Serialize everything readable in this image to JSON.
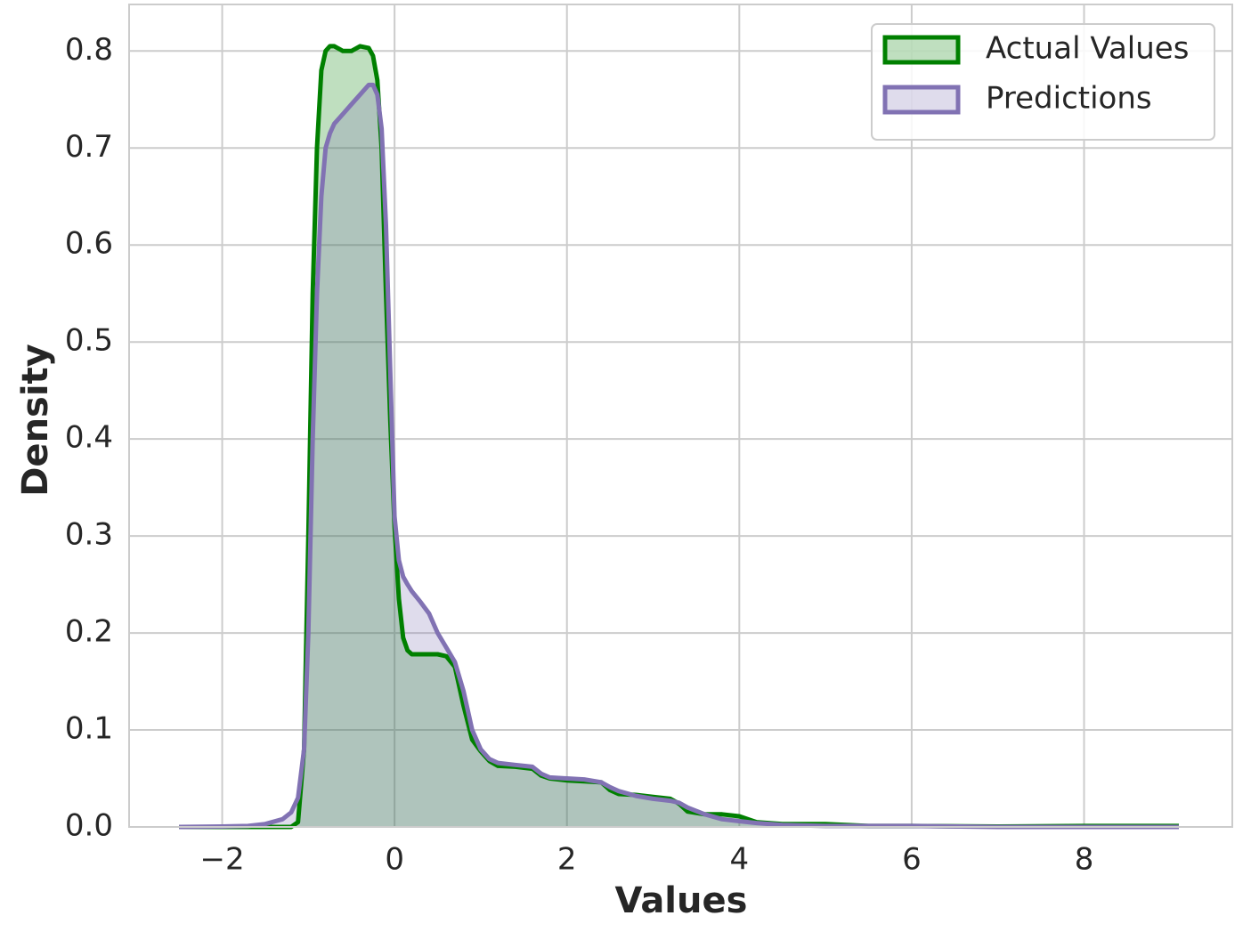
{
  "chart_data": {
    "type": "kde",
    "xlabel": "Values",
    "ylabel": "Density",
    "x": [
      -2.5,
      -2,
      -1.7,
      -1.5,
      -1.3,
      -1.2,
      -1.12,
      -1.05,
      -1.0,
      -0.95,
      -0.9,
      -0.85,
      -0.8,
      -0.75,
      -0.7,
      -0.6,
      -0.5,
      -0.4,
      -0.3,
      -0.25,
      -0.2,
      -0.15,
      -0.1,
      -0.05,
      0,
      0.05,
      0.1,
      0.15,
      0.2,
      0.3,
      0.4,
      0.5,
      0.6,
      0.7,
      0.8,
      0.9,
      1.0,
      1.1,
      1.2,
      1.4,
      1.6,
      1.7,
      1.8,
      2.0,
      2.2,
      2.4,
      2.5,
      2.6,
      2.8,
      3.0,
      3.2,
      3.3,
      3.4,
      3.6,
      3.8,
      4.0,
      4.2,
      4.5,
      5.0,
      5.5,
      6,
      7,
      8,
      9.1
    ],
    "series": [
      {
        "name": "Actual Values",
        "color": "#008000",
        "fill_opacity": 0.25,
        "values": [
          0,
          0,
          0,
          0,
          0,
          0,
          0.005,
          0.08,
          0.3,
          0.55,
          0.7,
          0.78,
          0.8,
          0.805,
          0.805,
          0.8,
          0.8,
          0.805,
          0.803,
          0.795,
          0.77,
          0.7,
          0.55,
          0.42,
          0.31,
          0.235,
          0.195,
          0.182,
          0.178,
          0.178,
          0.178,
          0.178,
          0.176,
          0.165,
          0.125,
          0.09,
          0.078,
          0.068,
          0.063,
          0.062,
          0.06,
          0.053,
          0.05,
          0.048,
          0.047,
          0.046,
          0.038,
          0.034,
          0.033,
          0.031,
          0.029,
          0.024,
          0.016,
          0.013,
          0.013,
          0.011,
          0.005,
          0.003,
          0.003,
          0.001,
          0.001,
          0.0005,
          0.001,
          0.001
        ]
      },
      {
        "name": "Predictions",
        "color": "#8172b3",
        "fill_opacity": 0.25,
        "values": [
          0,
          0.0005,
          0.001,
          0.003,
          0.008,
          0.015,
          0.03,
          0.08,
          0.2,
          0.4,
          0.55,
          0.65,
          0.7,
          0.715,
          0.725,
          0.735,
          0.745,
          0.755,
          0.765,
          0.765,
          0.755,
          0.72,
          0.62,
          0.47,
          0.32,
          0.275,
          0.258,
          0.25,
          0.243,
          0.232,
          0.22,
          0.2,
          0.185,
          0.17,
          0.14,
          0.1,
          0.08,
          0.07,
          0.066,
          0.064,
          0.062,
          0.055,
          0.051,
          0.05,
          0.049,
          0.046,
          0.041,
          0.037,
          0.032,
          0.029,
          0.027,
          0.025,
          0.02,
          0.013,
          0.008,
          0.006,
          0.004,
          0.002,
          0.001,
          0.001,
          0.001,
          0,
          0,
          0
        ]
      }
    ],
    "xlim": [
      -3.08,
      9.72
    ],
    "ylim": [
      0,
      0.848
    ],
    "xticks": [
      {
        "value": -2,
        "label": "−2"
      },
      0,
      2,
      4,
      6,
      8
    ],
    "yticks": [
      {
        "value": 0,
        "label": "0.0"
      },
      0.1,
      0.2,
      0.3,
      0.4,
      0.5,
      0.6,
      0.7,
      0.8
    ],
    "grid": true,
    "legend": "upper right"
  }
}
